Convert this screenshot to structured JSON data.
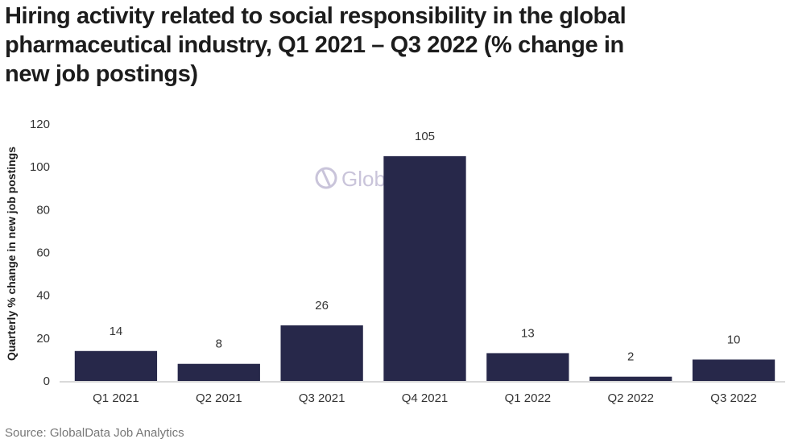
{
  "chart_data": {
    "type": "bar",
    "title": "Hiring activity related to social responsibility in the global pharmaceutical industry, Q1 2021 – Q3 2022 (% change in new job postings)",
    "categories": [
      "Q1 2021",
      "Q2 2021",
      "Q3 2021",
      "Q4 2021",
      "Q1 2022",
      "Q2 2022",
      "Q3 2022"
    ],
    "values": [
      14,
      8,
      26,
      105,
      13,
      2,
      10
    ],
    "data_labels": [
      "14",
      "8",
      "26",
      "105",
      "13",
      "2",
      "10"
    ],
    "xlabel": "",
    "ylabel": "Quarterly % change in new job postings",
    "ylim": [
      0,
      120
    ],
    "yticks": [
      0,
      20,
      40,
      60,
      80,
      100,
      120
    ],
    "grid": false,
    "legend": "none",
    "bar_color": "#27284a",
    "watermark": "GlobalData.",
    "source": "Source: GlobalData Job Analytics"
  }
}
